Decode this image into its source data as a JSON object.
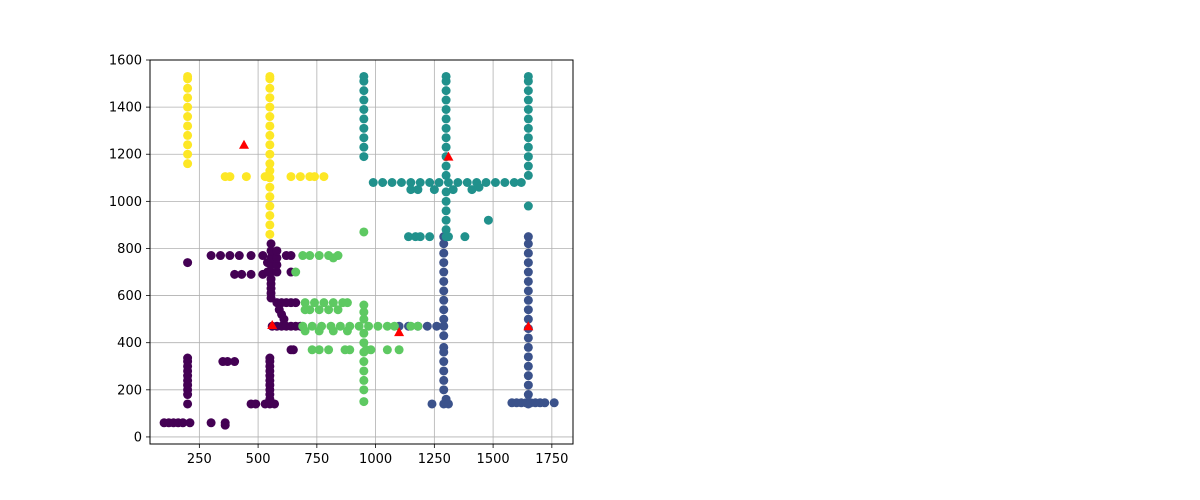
{
  "chart_data": {
    "type": "scatter",
    "title": "",
    "xlabel": "",
    "ylabel": "",
    "xlim": [
      40,
      1840
    ],
    "ylim": [
      -30,
      1600
    ],
    "xticks": [
      250,
      500,
      750,
      1000,
      1250,
      1500,
      1750
    ],
    "yticks": [
      0,
      200,
      400,
      600,
      800,
      1000,
      1200,
      1400,
      1600
    ],
    "grid": true,
    "legend": "none",
    "series": [
      {
        "color": "#440154",
        "marker": "circle",
        "points": [
          [
            100,
            60
          ],
          [
            120,
            60
          ],
          [
            140,
            60
          ],
          [
            160,
            60
          ],
          [
            180,
            60
          ],
          [
            210,
            60
          ],
          [
            300,
            60
          ],
          [
            360,
            60
          ],
          [
            360,
            50
          ],
          [
            200,
            740
          ],
          [
            200,
            140
          ],
          [
            200,
            180
          ],
          [
            200,
            200
          ],
          [
            200,
            220
          ],
          [
            200,
            240
          ],
          [
            200,
            260
          ],
          [
            200,
            280
          ],
          [
            200,
            300
          ],
          [
            200,
            320
          ],
          [
            200,
            335
          ],
          [
            350,
            320
          ],
          [
            370,
            320
          ],
          [
            400,
            320
          ],
          [
            470,
            140
          ],
          [
            490,
            140
          ],
          [
            530,
            140
          ],
          [
            550,
            140
          ],
          [
            570,
            140
          ],
          [
            550,
            160
          ],
          [
            550,
            180
          ],
          [
            550,
            200
          ],
          [
            550,
            220
          ],
          [
            550,
            240
          ],
          [
            550,
            260
          ],
          [
            550,
            280
          ],
          [
            550,
            300
          ],
          [
            550,
            320
          ],
          [
            550,
            335
          ],
          [
            300,
            770
          ],
          [
            340,
            770
          ],
          [
            380,
            770
          ],
          [
            420,
            770
          ],
          [
            470,
            770
          ],
          [
            520,
            770
          ],
          [
            560,
            770
          ],
          [
            400,
            690
          ],
          [
            430,
            690
          ],
          [
            470,
            690
          ],
          [
            520,
            690
          ],
          [
            540,
            700
          ],
          [
            540,
            740
          ],
          [
            555,
            590
          ],
          [
            555,
            610
          ],
          [
            555,
            630
          ],
          [
            555,
            650
          ],
          [
            555,
            670
          ],
          [
            555,
            700
          ],
          [
            555,
            730
          ],
          [
            555,
            760
          ],
          [
            555,
            790
          ],
          [
            555,
            820
          ],
          [
            580,
            700
          ],
          [
            580,
            730
          ],
          [
            580,
            760
          ],
          [
            580,
            790
          ],
          [
            620,
            770
          ],
          [
            640,
            770
          ],
          [
            640,
            700
          ],
          [
            580,
            570
          ],
          [
            600,
            570
          ],
          [
            620,
            570
          ],
          [
            640,
            570
          ],
          [
            660,
            570
          ],
          [
            590,
            540
          ],
          [
            600,
            520
          ],
          [
            610,
            500
          ],
          [
            560,
            470
          ],
          [
            580,
            470
          ],
          [
            600,
            470
          ],
          [
            620,
            470
          ],
          [
            640,
            470
          ],
          [
            660,
            470
          ],
          [
            680,
            470
          ],
          [
            640,
            370
          ],
          [
            650,
            370
          ]
        ]
      },
      {
        "color": "#3b528b",
        "marker": "circle",
        "points": [
          [
            1290,
            140
          ],
          [
            1300,
            160
          ],
          [
            1290,
            200
          ],
          [
            1290,
            240
          ],
          [
            1290,
            280
          ],
          [
            1290,
            320
          ],
          [
            1290,
            360
          ],
          [
            1290,
            380
          ],
          [
            1290,
            430
          ],
          [
            1290,
            470
          ],
          [
            1290,
            500
          ],
          [
            1290,
            540
          ],
          [
            1290,
            580
          ],
          [
            1290,
            620
          ],
          [
            1290,
            660
          ],
          [
            1290,
            700
          ],
          [
            1290,
            740
          ],
          [
            1290,
            780
          ],
          [
            1290,
            820
          ],
          [
            1290,
            850
          ],
          [
            1240,
            140
          ],
          [
            1310,
            140
          ],
          [
            1100,
            470
          ],
          [
            1140,
            470
          ],
          [
            1180,
            470
          ],
          [
            1220,
            470
          ],
          [
            1260,
            470
          ],
          [
            1650,
            140
          ],
          [
            1650,
            180
          ],
          [
            1650,
            220
          ],
          [
            1650,
            260
          ],
          [
            1650,
            300
          ],
          [
            1650,
            340
          ],
          [
            1650,
            380
          ],
          [
            1650,
            420
          ],
          [
            1650,
            460
          ],
          [
            1650,
            500
          ],
          [
            1650,
            540
          ],
          [
            1650,
            580
          ],
          [
            1650,
            620
          ],
          [
            1650,
            660
          ],
          [
            1650,
            700
          ],
          [
            1650,
            740
          ],
          [
            1650,
            780
          ],
          [
            1650,
            820
          ],
          [
            1650,
            850
          ],
          [
            1580,
            145
          ],
          [
            1600,
            145
          ],
          [
            1620,
            145
          ],
          [
            1640,
            145
          ],
          [
            1660,
            145
          ],
          [
            1680,
            145
          ],
          [
            1700,
            145
          ],
          [
            1720,
            145
          ],
          [
            1760,
            145
          ]
        ]
      },
      {
        "color": "#21918c",
        "marker": "circle",
        "points": [
          [
            950,
            1190
          ],
          [
            950,
            1230
          ],
          [
            950,
            1270
          ],
          [
            950,
            1310
          ],
          [
            950,
            1350
          ],
          [
            950,
            1390
          ],
          [
            950,
            1430
          ],
          [
            950,
            1470
          ],
          [
            950,
            1510
          ],
          [
            950,
            1530
          ],
          [
            1300,
            1110
          ],
          [
            1300,
            1150
          ],
          [
            1300,
            1190
          ],
          [
            1300,
            1230
          ],
          [
            1300,
            1270
          ],
          [
            1300,
            1310
          ],
          [
            1300,
            1350
          ],
          [
            1300,
            1390
          ],
          [
            1300,
            1430
          ],
          [
            1300,
            1470
          ],
          [
            1300,
            1510
          ],
          [
            1300,
            1530
          ],
          [
            1650,
            1110
          ],
          [
            1650,
            1150
          ],
          [
            1650,
            1190
          ],
          [
            1650,
            1230
          ],
          [
            1650,
            1270
          ],
          [
            1650,
            1310
          ],
          [
            1650,
            1350
          ],
          [
            1650,
            1390
          ],
          [
            1650,
            1430
          ],
          [
            1650,
            1470
          ],
          [
            1650,
            1510
          ],
          [
            1650,
            1530
          ],
          [
            1650,
            980
          ],
          [
            990,
            1080
          ],
          [
            1030,
            1080
          ],
          [
            1070,
            1080
          ],
          [
            1110,
            1080
          ],
          [
            1150,
            1080
          ],
          [
            1190,
            1080
          ],
          [
            1230,
            1080
          ],
          [
            1270,
            1080
          ],
          [
            1310,
            1080
          ],
          [
            1350,
            1080
          ],
          [
            1390,
            1080
          ],
          [
            1430,
            1080
          ],
          [
            1470,
            1080
          ],
          [
            1510,
            1080
          ],
          [
            1550,
            1080
          ],
          [
            1590,
            1080
          ],
          [
            1620,
            1080
          ],
          [
            1150,
            1050
          ],
          [
            1180,
            1050
          ],
          [
            1250,
            1050
          ],
          [
            1330,
            1050
          ],
          [
            1410,
            1050
          ],
          [
            1440,
            1060
          ],
          [
            1300,
            1040
          ],
          [
            1300,
            1000
          ],
          [
            1300,
            960
          ],
          [
            1300,
            920
          ],
          [
            1300,
            880
          ],
          [
            1300,
            850
          ],
          [
            1480,
            920
          ],
          [
            1140,
            850
          ],
          [
            1170,
            850
          ],
          [
            1190,
            850
          ],
          [
            1230,
            850
          ],
          [
            1310,
            850
          ],
          [
            1380,
            850
          ]
        ]
      },
      {
        "color": "#5ec962",
        "marker": "circle",
        "points": [
          [
            660,
            700
          ],
          [
            690,
            770
          ],
          [
            720,
            770
          ],
          [
            760,
            770
          ],
          [
            800,
            770
          ],
          [
            820,
            760
          ],
          [
            840,
            770
          ],
          [
            700,
            570
          ],
          [
            740,
            570
          ],
          [
            780,
            570
          ],
          [
            820,
            570
          ],
          [
            860,
            570
          ],
          [
            880,
            570
          ],
          [
            700,
            540
          ],
          [
            720,
            540
          ],
          [
            760,
            540
          ],
          [
            800,
            540
          ],
          [
            840,
            540
          ],
          [
            690,
            470
          ],
          [
            730,
            470
          ],
          [
            770,
            470
          ],
          [
            810,
            470
          ],
          [
            850,
            470
          ],
          [
            890,
            470
          ],
          [
            930,
            470
          ],
          [
            970,
            470
          ],
          [
            1010,
            470
          ],
          [
            1050,
            470
          ],
          [
            1080,
            470
          ],
          [
            1150,
            470
          ],
          [
            1180,
            470
          ],
          [
            700,
            450
          ],
          [
            760,
            450
          ],
          [
            820,
            450
          ],
          [
            880,
            450
          ],
          [
            950,
            870
          ],
          [
            950,
            150
          ],
          [
            950,
            200
          ],
          [
            950,
            240
          ],
          [
            950,
            280
          ],
          [
            950,
            320
          ],
          [
            950,
            360
          ],
          [
            950,
            400
          ],
          [
            950,
            440
          ],
          [
            950,
            500
          ],
          [
            950,
            530
          ],
          [
            950,
            560
          ],
          [
            730,
            370
          ],
          [
            760,
            370
          ],
          [
            800,
            370
          ],
          [
            870,
            370
          ],
          [
            890,
            370
          ],
          [
            960,
            370
          ],
          [
            980,
            370
          ],
          [
            1050,
            370
          ],
          [
            1100,
            370
          ]
        ]
      },
      {
        "color": "#fde725",
        "marker": "circle",
        "points": [
          [
            200,
            1160
          ],
          [
            200,
            1200
          ],
          [
            200,
            1240
          ],
          [
            200,
            1280
          ],
          [
            200,
            1320
          ],
          [
            200,
            1360
          ],
          [
            200,
            1400
          ],
          [
            200,
            1440
          ],
          [
            200,
            1480
          ],
          [
            200,
            1520
          ],
          [
            200,
            1530
          ],
          [
            550,
            1160
          ],
          [
            550,
            1200
          ],
          [
            550,
            1240
          ],
          [
            550,
            1280
          ],
          [
            550,
            1320
          ],
          [
            550,
            1360
          ],
          [
            550,
            1400
          ],
          [
            550,
            1440
          ],
          [
            550,
            1480
          ],
          [
            550,
            1520
          ],
          [
            550,
            1530
          ],
          [
            550,
            860
          ],
          [
            550,
            900
          ],
          [
            550,
            940
          ],
          [
            550,
            980
          ],
          [
            550,
            1020
          ],
          [
            550,
            1060
          ],
          [
            550,
            1100
          ],
          [
            550,
            1130
          ],
          [
            360,
            1105
          ],
          [
            380,
            1105
          ],
          [
            450,
            1105
          ],
          [
            530,
            1105
          ],
          [
            640,
            1105
          ],
          [
            680,
            1105
          ],
          [
            720,
            1105
          ],
          [
            740,
            1105
          ],
          [
            780,
            1105
          ]
        ]
      },
      {
        "color": "#ff0000",
        "marker": "triangle",
        "points": [
          [
            440,
            1240
          ],
          [
            1310,
            1190
          ],
          [
            560,
            475
          ],
          [
            1100,
            445
          ],
          [
            1650,
            470
          ]
        ]
      }
    ]
  }
}
